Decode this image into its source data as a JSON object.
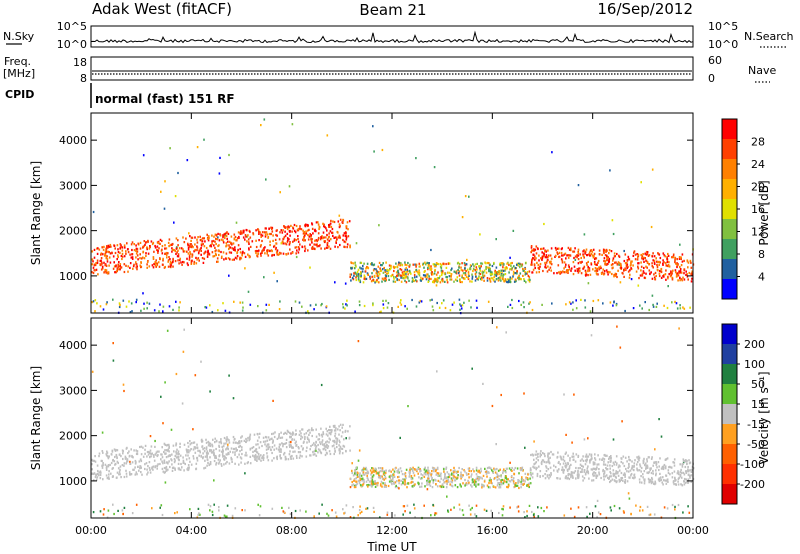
{
  "header": {
    "station": "Adak West (fitACF)",
    "beam": "Beam 21",
    "date": "16/Sep/2012"
  },
  "top_panels": {
    "nsky_label": "N.Sky",
    "nsky_ticks": [
      "10^5",
      "10^0"
    ],
    "nsearch_label": "N.Search",
    "nsearch_ticks": [
      "10^5",
      "10^0"
    ],
    "freq_label_1": "Freq.",
    "freq_label_2": "[MHz]",
    "freq_ticks": [
      "18",
      "8"
    ],
    "nave_label": "Nave",
    "nave_ticks": [
      "60",
      "0"
    ],
    "cpid_label": "CPID",
    "cpid_text": "normal (fast) 151 RF"
  },
  "chart_data": [
    {
      "type": "heatmap",
      "name": "power",
      "ylabel": "Slant Range [km]",
      "xlabel": "",
      "ylim": [
        180,
        4600
      ],
      "xlim": [
        0,
        24
      ],
      "y_ticks": [
        "1000",
        "2000",
        "3000",
        "4000"
      ],
      "colorbar": {
        "label": "Power [dB]",
        "ticks": [
          "28",
          "24",
          "20",
          "16",
          "12",
          "8",
          "4"
        ],
        "colors": [
          "#ff0000",
          "#ff4000",
          "#ff8000",
          "#ffb000",
          "#e0e000",
          "#80c040",
          "#40a060",
          "#2060a0",
          "#0000ff"
        ]
      },
      "colors": [
        "#ff0000",
        "#ff4000",
        "#ff8000",
        "#ffb000",
        "#e0e000",
        "#80c040",
        "#40a060",
        "#2060a0",
        "#0000ff"
      ]
    },
    {
      "type": "heatmap",
      "name": "velocity",
      "ylabel": "Slant Range [km]",
      "xlabel": "Time UT",
      "ylim": [
        180,
        4600
      ],
      "xlim": [
        0,
        24
      ],
      "y_ticks": [
        "1000",
        "2000",
        "3000",
        "4000"
      ],
      "x_ticks": [
        "00:00",
        "04:00",
        "08:00",
        "12:00",
        "16:00",
        "20:00",
        "00:00"
      ],
      "colorbar": {
        "label": "Velocity [m s⁻¹]",
        "ticks": [
          "200",
          "100",
          "50",
          "15",
          "-15",
          "-50",
          "-100",
          "-200"
        ],
        "colors": [
          "#0000cc",
          "#2040a0",
          "#208040",
          "#60c030",
          "#c0c0c0",
          "#ffa020",
          "#ff6000",
          "#ff3000",
          "#e00000"
        ]
      },
      "colors": [
        "#0000cc",
        "#2040a0",
        "#208040",
        "#60c030",
        "#c0c0c0",
        "#ffa020",
        "#ff6000",
        "#ff3000",
        "#e00000"
      ]
    }
  ]
}
